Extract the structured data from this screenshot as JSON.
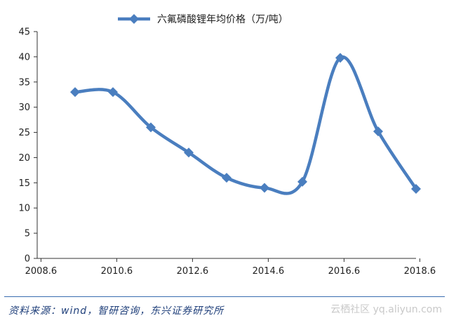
{
  "chart_data": {
    "type": "line",
    "title": "",
    "xlabel": "",
    "ylabel": "",
    "x_ticks": [
      "2008.6",
      "2010.6",
      "2012.6",
      "2014.6",
      "2016.6",
      "2018.6"
    ],
    "x_range": [
      2008.5,
      2018.5
    ],
    "ylim": [
      0,
      45
    ],
    "y_ticks": [
      "0",
      "5",
      "10",
      "15",
      "20",
      "25",
      "30",
      "35",
      "40",
      "45"
    ],
    "grid": false,
    "legend_position": "top",
    "series": [
      {
        "name": "六氟磷酸锂年均价格（万/吨）",
        "color": "#4a7ebf",
        "x": [
          2009.5,
          2010.5,
          2011.5,
          2012.5,
          2013.5,
          2014.5,
          2015.5,
          2016.5,
          2017.5,
          2018.5
        ],
        "values": [
          33,
          33,
          26,
          21,
          16,
          14,
          15.2,
          39.8,
          25.2,
          13.8
        ]
      }
    ]
  },
  "footer": {
    "source": "资料来源：wind，智研咨询，东兴证券研究所",
    "watermark": "云栖社区 yq.aliyun.com"
  }
}
